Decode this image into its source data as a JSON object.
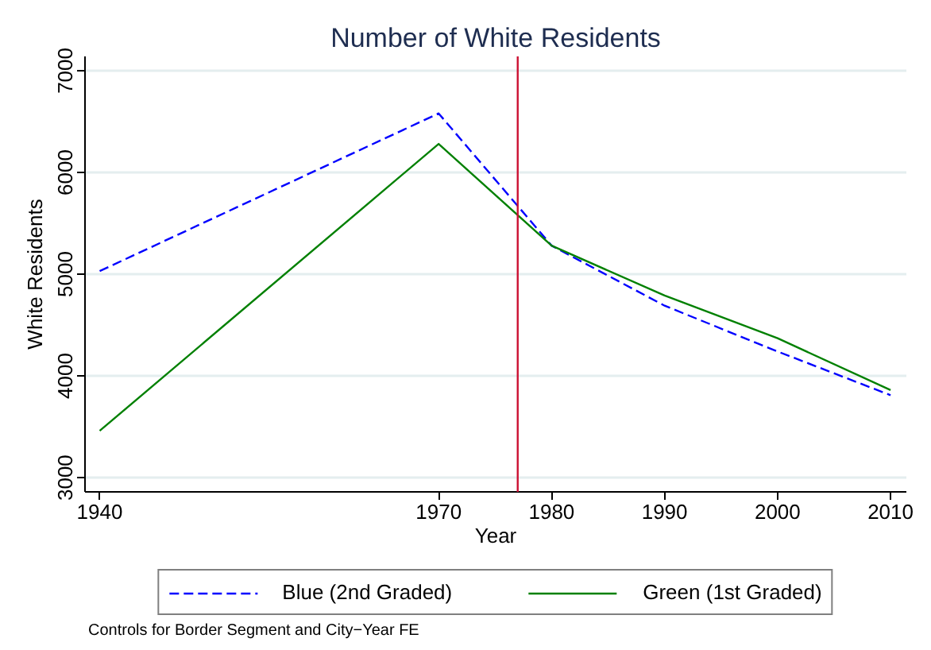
{
  "chart_data": {
    "type": "line",
    "title": "Number of White Residents",
    "xlabel": "Year",
    "ylabel": "White Residents",
    "x": [
      1940,
      1970,
      1980,
      1990,
      2000,
      2010
    ],
    "series": [
      {
        "name": "Blue (2nd Graded)",
        "color": "#0000ff",
        "line_style": "dashed",
        "values": [
          5030,
          6580,
          5280,
          4690,
          4240,
          3810
        ]
      },
      {
        "name": "Green (1st Graded)",
        "color": "#008000",
        "line_style": "solid",
        "values": [
          3460,
          6280,
          5280,
          4790,
          4370,
          3860
        ]
      }
    ],
    "xlim": [
      1938.7,
      2011.4
    ],
    "xticks": [
      1940,
      1970,
      1980,
      1990,
      2000,
      2010
    ],
    "ylim": [
      2860,
      7140
    ],
    "yticks": [
      3000,
      4000,
      5000,
      6000,
      7000
    ],
    "grid": "y",
    "legend": "bottom",
    "ref_lines": [
      {
        "axis": "x",
        "value": 1977,
        "color": "#cc1133"
      }
    ],
    "annotations": [
      "Controls for Border Segment and City−Year FE"
    ]
  }
}
